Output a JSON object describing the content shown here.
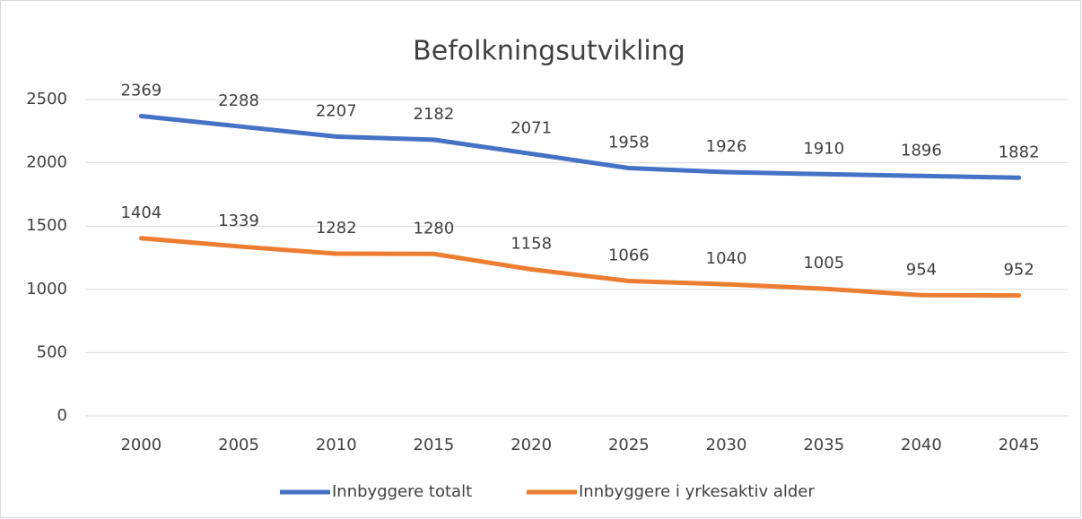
{
  "chart_data": {
    "type": "line",
    "title": "Befolkningsutvikling",
    "categories": [
      "2000",
      "2005",
      "2010",
      "2015",
      "2020",
      "2025",
      "2030",
      "2035",
      "2040",
      "2045"
    ],
    "series": [
      {
        "name": "Innbyggere totalt",
        "color": "#4472c4",
        "values": [
          2369,
          2288,
          2207,
          2182,
          2071,
          1958,
          1926,
          1910,
          1896,
          1882
        ]
      },
      {
        "name": "Innbyggere i yrkesaktiv alder",
        "color": "#ed7d31",
        "values": [
          1404,
          1339,
          1282,
          1280,
          1158,
          1066,
          1040,
          1005,
          954,
          952
        ]
      }
    ],
    "ylim": [
      0,
      2500
    ],
    "yticks": [
      0,
      500,
      1000,
      1500,
      2000,
      2500
    ],
    "grid": true,
    "legend": "bottom"
  }
}
